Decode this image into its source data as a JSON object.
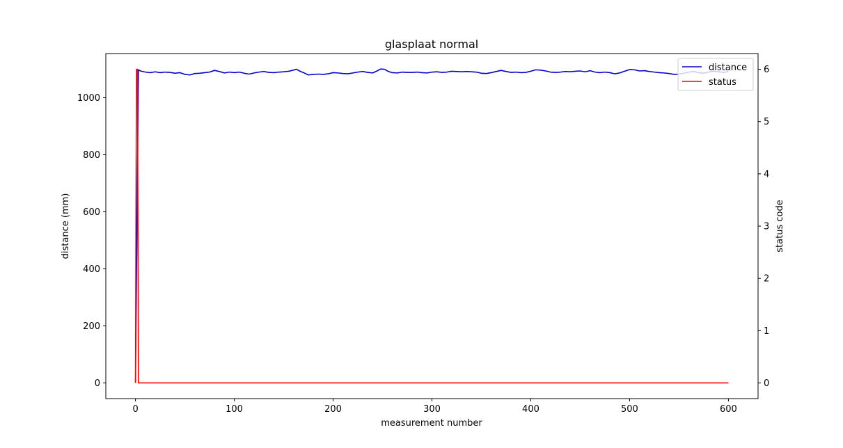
{
  "chart_data": {
    "type": "line",
    "title": "glasplaat normal",
    "xlabel": "measurement number",
    "ylabel": "distance (mm)",
    "y2label": "status code",
    "xlim": [
      -30,
      630
    ],
    "ylim": [
      -55,
      1155
    ],
    "y2lim": [
      -0.3,
      6.3
    ],
    "xticks": [
      0,
      100,
      200,
      300,
      400,
      500,
      600
    ],
    "yticks": [
      0,
      200,
      400,
      600,
      800,
      1000
    ],
    "y2ticks": [
      0,
      1,
      2,
      3,
      4,
      5,
      6
    ],
    "grid": false,
    "legend_position": "top-right",
    "series": [
      {
        "name": "distance",
        "axis": "left",
        "color": "#0000cc",
        "x": [
          0,
          3,
          5,
          10,
          15,
          20,
          25,
          30,
          35,
          40,
          45,
          50,
          55,
          60,
          65,
          70,
          75,
          80,
          85,
          90,
          95,
          100,
          105,
          110,
          115,
          120,
          125,
          130,
          135,
          140,
          145,
          150,
          155,
          160,
          163,
          166,
          170,
          175,
          180,
          185,
          190,
          195,
          200,
          205,
          210,
          215,
          220,
          225,
          230,
          235,
          240,
          245,
          248,
          252,
          256,
          260,
          265,
          270,
          275,
          280,
          285,
          290,
          295,
          300,
          305,
          310,
          315,
          320,
          325,
          330,
          335,
          340,
          345,
          350,
          355,
          360,
          365,
          370,
          375,
          380,
          385,
          390,
          395,
          400,
          405,
          410,
          415,
          420,
          425,
          430,
          435,
          440,
          445,
          450,
          455,
          460,
          465,
          470,
          475,
          480,
          485,
          490,
          495,
          500,
          505,
          510,
          515,
          520,
          525,
          530,
          535,
          540,
          545,
          550,
          555,
          560,
          565,
          570,
          575,
          580,
          585,
          590,
          595,
          600
        ],
        "values": [
          0,
          1098,
          1094,
          1090,
          1088,
          1091,
          1088,
          1090,
          1089,
          1086,
          1088,
          1082,
          1080,
          1085,
          1086,
          1088,
          1090,
          1096,
          1092,
          1087,
          1090,
          1088,
          1090,
          1086,
          1083,
          1087,
          1090,
          1092,
          1089,
          1088,
          1090,
          1091,
          1093,
          1097,
          1100,
          1094,
          1088,
          1080,
          1082,
          1083,
          1082,
          1084,
          1088,
          1087,
          1085,
          1084,
          1087,
          1090,
          1092,
          1089,
          1087,
          1095,
          1101,
          1100,
          1092,
          1088,
          1087,
          1090,
          1089,
          1089,
          1090,
          1088,
          1087,
          1090,
          1091,
          1089,
          1090,
          1093,
          1092,
          1091,
          1092,
          1091,
          1090,
          1086,
          1085,
          1088,
          1092,
          1096,
          1092,
          1089,
          1090,
          1088,
          1089,
          1093,
          1098,
          1097,
          1094,
          1090,
          1089,
          1090,
          1092,
          1091,
          1093,
          1094,
          1091,
          1095,
          1090,
          1088,
          1090,
          1088,
          1084,
          1087,
          1093,
          1099,
          1098,
          1094,
          1095,
          1092,
          1090,
          1088,
          1087,
          1085,
          1082,
          1083,
          1086,
          1090,
          1092,
          1088,
          1086,
          1090,
          1093,
          1091,
          1089,
          1092
        ]
      },
      {
        "name": "status",
        "axis": "right",
        "color": "#ff0000",
        "x": [
          0,
          1,
          2,
          3,
          600
        ],
        "values": [
          0,
          6,
          6,
          0,
          0
        ]
      }
    ]
  }
}
